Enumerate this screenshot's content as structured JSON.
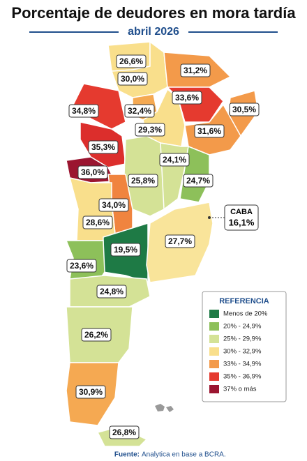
{
  "header": {
    "title": "Porcentaje de deudores en mora tardía",
    "subtitle": "abril 2026"
  },
  "regions": [
    {
      "label": "26,6%",
      "color": "#f9df8c"
    },
    {
      "label": "30,0%",
      "color": "#f9df8c"
    },
    {
      "label": "31,2%",
      "color": "#f39a4a"
    },
    {
      "label": "33,6%",
      "color": "#e53a2f"
    },
    {
      "label": "30,5%",
      "color": "#f39a4a"
    },
    {
      "label": "34,8%",
      "color": "#e53a2f"
    },
    {
      "label": "32,4%",
      "color": "#f5a952"
    },
    {
      "label": "29,3%",
      "color": "#f9df8c"
    },
    {
      "label": "31,6%",
      "color": "#f39a4a"
    },
    {
      "label": "35,3%",
      "color": "#dc2e2c"
    },
    {
      "label": "24,1%",
      "color": "#d4e296"
    },
    {
      "label": "24,7%",
      "color": "#8dc05a"
    },
    {
      "label": "36,0%",
      "color": "#9b1530"
    },
    {
      "label": "25,8%",
      "color": "#d4e296"
    },
    {
      "label": "34,0%",
      "color": "#f0843f"
    },
    {
      "label": "28,6%",
      "color": "#f9df8c"
    },
    {
      "label": "19,5%",
      "color": "#1e7a45"
    },
    {
      "label": "27,7%",
      "color": "#f9e49a"
    },
    {
      "label": "23,6%",
      "color": "#8dc05a"
    },
    {
      "label": "24,8%",
      "color": "#d4e296"
    },
    {
      "label": "26,2%",
      "color": "#d4e296"
    },
    {
      "label": "30,9%",
      "color": "#f5a952"
    },
    {
      "label": "26,8%",
      "color": "#d4e296"
    }
  ],
  "caba": {
    "name": "CABA",
    "label": "16,1%"
  },
  "legend": {
    "title": "REFERENCIA",
    "items": [
      {
        "label": "Menos de 20%",
        "color": "#1e7a45"
      },
      {
        "label": "20% - 24,9%",
        "color": "#8dc05a"
      },
      {
        "label": "25% - 29,9%",
        "color": "#d4e296"
      },
      {
        "label": "30% - 32,9%",
        "color": "#f9df8c"
      },
      {
        "label": "33% - 34,9%",
        "color": "#f39a4a"
      },
      {
        "label": "35% - 36,9%",
        "color": "#e53a2f"
      },
      {
        "label": "37% o más",
        "color": "#9b1530"
      }
    ]
  },
  "footer": {
    "source_label": "Fuente:",
    "source": "Analytica en base a BCRA."
  }
}
